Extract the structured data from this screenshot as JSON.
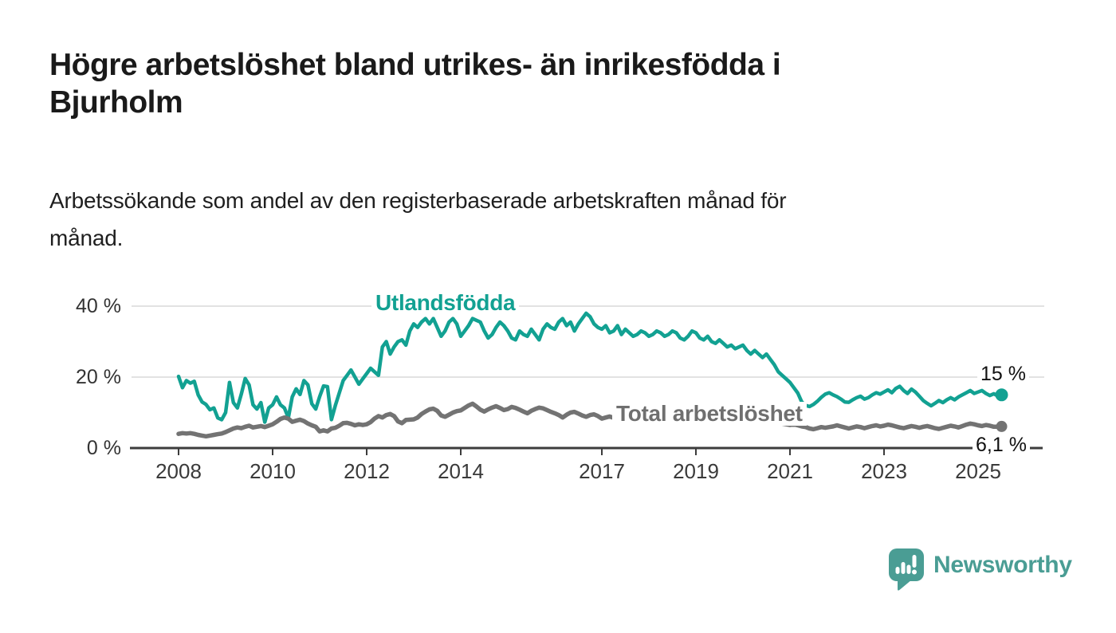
{
  "header": {
    "title_lines": [
      "Högre arbetslöshet bland utrikes- än inrikesfödda i",
      "Bjurholm"
    ],
    "subtitle_lines": [
      "Arbetssökande som andel av den registerbaserade arbetskraften månad för",
      "månad."
    ]
  },
  "branding": {
    "logo_text": "Newsworthy",
    "logo_icon": "speech-bubble-bar-chart-icon",
    "brand_color": "#4a9d94"
  },
  "chart_data": {
    "type": "line",
    "title": "Högre arbetslöshet bland utrikes- än inrikesfödda i Bjurholm",
    "subtitle": "Arbetssökande som andel av den registerbaserade arbetskraften månad för månad.",
    "unit": "%",
    "grid": "horizontal",
    "grid_color": "#d9d9d9",
    "axis_color": "#3c3c3c",
    "ylim": [
      0,
      42
    ],
    "x_range_years": [
      2008.0,
      2025.5
    ],
    "y_ticks": [
      {
        "label": "40 %",
        "value": 40
      },
      {
        "label": "20 %",
        "value": 20
      },
      {
        "label": "0 %",
        "value": 0
      }
    ],
    "x_ticks": [
      2008,
      2010,
      2012,
      2014,
      2017,
      2019,
      2021,
      2023,
      2025
    ],
    "series": [
      {
        "id": "utlandsfodda",
        "name": "Utlandsfödda",
        "color": "#12a192",
        "line_width": 4.5,
        "end_dot_radius": 8,
        "end_label": "15 %",
        "end_value": 15,
        "start_year": 2008,
        "start_month": 1,
        "values_note": "monthly share estimated from chart pixels",
        "monthly_values": [
          20.2,
          17.0,
          19.0,
          18.3,
          18.8,
          15.0,
          13.0,
          12.3,
          10.8,
          11.3,
          8.5,
          8.0,
          10.0,
          18.5,
          12.8,
          11.3,
          15.2,
          19.6,
          17.8,
          12.2,
          11.0,
          12.8,
          7.3,
          11.3,
          12.2,
          14.4,
          12.2,
          11.3,
          8.5,
          14.4,
          16.7,
          15.1,
          19.0,
          17.8,
          12.5,
          11.0,
          14.5,
          17.5,
          17.3,
          8.0,
          12.0,
          15.5,
          19.0,
          20.5,
          22.0,
          20.0,
          18.0,
          19.5,
          21.0,
          22.5,
          21.5,
          20.5,
          28.5,
          30.0,
          26.5,
          28.5,
          30.0,
          30.5,
          29.0,
          33.0,
          35.0,
          34.0,
          35.5,
          36.5,
          35.0,
          36.5,
          34.0,
          31.5,
          33.0,
          35.5,
          36.5,
          35.0,
          31.5,
          33.0,
          34.5,
          36.5,
          36.0,
          35.5,
          33.0,
          31.0,
          32.0,
          34.0,
          35.5,
          34.5,
          33.0,
          31.0,
          30.5,
          33.0,
          32.0,
          31.5,
          33.5,
          32.0,
          30.5,
          33.5,
          35.0,
          34.0,
          33.5,
          35.5,
          36.5,
          34.5,
          35.5,
          33.0,
          35.0,
          36.5,
          38.0,
          37.0,
          35.0,
          34.0,
          33.5,
          34.5,
          32.5,
          33.0,
          34.5,
          32.0,
          33.5,
          32.5,
          31.5,
          32.0,
          33.0,
          32.5,
          31.5,
          32.0,
          33.0,
          32.5,
          31.5,
          32.0,
          33.0,
          32.5,
          31.0,
          30.5,
          31.5,
          33.0,
          32.5,
          31.0,
          30.5,
          31.5,
          30.0,
          29.5,
          30.5,
          29.5,
          28.5,
          29.0,
          28.0,
          28.5,
          29.0,
          27.5,
          26.5,
          27.5,
          26.5,
          25.5,
          26.5,
          25.0,
          23.5,
          21.5,
          20.5,
          19.5,
          18.5,
          17.0,
          15.5,
          13.0,
          12.0,
          11.7,
          12.3,
          13.2,
          14.3,
          15.2,
          15.6,
          15.0,
          14.5,
          13.8,
          13.0,
          12.9,
          13.6,
          14.2,
          14.6,
          13.8,
          14.2,
          15.0,
          15.6,
          15.2,
          15.8,
          16.4,
          15.6,
          16.8,
          17.4,
          16.2,
          15.4,
          16.6,
          15.8,
          14.6,
          13.4,
          12.6,
          11.9,
          12.6,
          13.4,
          12.8,
          13.6,
          14.2,
          13.6,
          14.4,
          15.0,
          15.6,
          16.2,
          15.4,
          15.8,
          16.2,
          15.4,
          14.8,
          15.3,
          14.7,
          15.0
        ]
      },
      {
        "id": "total",
        "name": "Total arbetslöshet",
        "color": "#737373",
        "line_width": 5.5,
        "end_dot_radius": 7,
        "end_label": "6,1 %",
        "end_value": 6.1,
        "start_year": 2008,
        "start_month": 1,
        "values_note": "monthly share estimated from chart pixels",
        "monthly_values": [
          4.0,
          4.2,
          4.1,
          4.2,
          4.0,
          3.7,
          3.5,
          3.3,
          3.5,
          3.7,
          3.9,
          4.1,
          4.5,
          5.0,
          5.5,
          5.8,
          5.6,
          6.0,
          6.3,
          5.8,
          6.0,
          6.2,
          5.9,
          6.3,
          6.7,
          7.4,
          8.2,
          8.6,
          8.3,
          7.4,
          7.7,
          8.0,
          7.6,
          6.9,
          6.4,
          6.0,
          4.7,
          5.0,
          4.7,
          5.5,
          5.7,
          6.3,
          7.0,
          7.1,
          6.8,
          6.4,
          6.7,
          6.5,
          6.7,
          7.3,
          8.3,
          9.0,
          8.6,
          9.3,
          9.6,
          9.0,
          7.5,
          7.0,
          7.9,
          8.0,
          8.1,
          8.6,
          9.6,
          10.3,
          10.9,
          11.1,
          10.5,
          9.2,
          8.8,
          9.4,
          10.0,
          10.4,
          10.6,
          11.3,
          12.0,
          12.5,
          11.7,
          10.8,
          10.3,
          10.9,
          11.4,
          11.8,
          11.3,
          10.7,
          11.0,
          11.6,
          11.3,
          10.8,
          10.3,
          9.8,
          10.5,
          11.0,
          11.4,
          11.2,
          10.7,
          10.2,
          9.8,
          9.3,
          8.6,
          9.4,
          10.0,
          10.2,
          9.7,
          9.2,
          8.8,
          9.3,
          9.5,
          9.0,
          8.3,
          8.6,
          8.9,
          8.5,
          8.1,
          7.8,
          8.2,
          8.5,
          8.3,
          8.0,
          7.7,
          7.9,
          7.6,
          7.9,
          8.2,
          8.0,
          7.7,
          7.4,
          7.8,
          8.1,
          7.9,
          7.6,
          7.4,
          7.7,
          7.5,
          7.8,
          7.6,
          7.3,
          7.1,
          7.4,
          7.7,
          7.5,
          7.2,
          7.4,
          7.6,
          7.3,
          7.1,
          7.5,
          7.9,
          8.3,
          8.0,
          7.7,
          7.9,
          7.6,
          7.3,
          7.1,
          6.9,
          6.7,
          6.5,
          6.7,
          6.4,
          6.1,
          5.9,
          5.5,
          5.3,
          5.6,
          5.9,
          5.7,
          5.9,
          6.1,
          6.4,
          6.1,
          5.8,
          5.5,
          5.8,
          6.1,
          5.9,
          5.6,
          5.9,
          6.2,
          6.4,
          6.1,
          6.3,
          6.6,
          6.4,
          6.1,
          5.8,
          5.6,
          5.9,
          6.2,
          6.0,
          5.7,
          6.0,
          6.2,
          5.9,
          5.6,
          5.4,
          5.7,
          6.0,
          6.3,
          6.1,
          5.8,
          6.2,
          6.6,
          6.9,
          6.7,
          6.4,
          6.2,
          6.5,
          6.3,
          6.0,
          6.0,
          6.1
        ]
      }
    ]
  }
}
